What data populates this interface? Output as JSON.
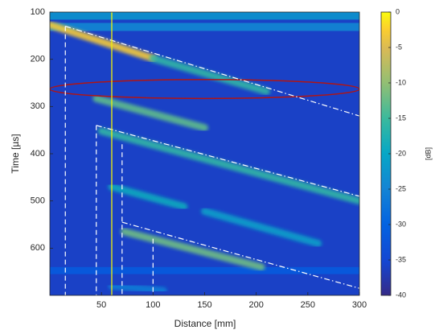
{
  "chart_data": {
    "type": "heatmap",
    "xlabel": "Distance [mm]",
    "ylabel": "Time [µs]",
    "colorbar_label": "[dB]",
    "colormap": "parula",
    "xlim": [
      0,
      300
    ],
    "xticks": [
      50,
      100,
      150,
      200,
      250,
      300
    ],
    "ylim": [
      100,
      700
    ],
    "yticks": [
      100,
      200,
      300,
      400,
      500,
      600
    ],
    "clim": [
      -40,
      0
    ],
    "cticks": [
      0,
      -5,
      -10,
      -15,
      -20,
      -25,
      -30,
      -35,
      -40
    ],
    "background": -36,
    "bands": [
      {
        "y": [
          100,
          116
        ],
        "value": -22
      },
      {
        "y": [
          123,
          140
        ],
        "value": -24
      },
      {
        "y": [
          640,
          655
        ],
        "value": -31
      }
    ],
    "streaks": [
      {
        "x": [
          0,
          100
        ],
        "y": [
          127,
          198
        ],
        "value": -3
      },
      {
        "x": [
          100,
          210
        ],
        "y": [
          198,
          268
        ],
        "value": -16
      },
      {
        "x": [
          0,
          300
        ],
        "y": [
          262,
          262
        ],
        "value": -20
      },
      {
        "x": [
          45,
          150
        ],
        "y": [
          283,
          345
        ],
        "value": -13
      },
      {
        "x": [
          50,
          300
        ],
        "y": [
          352,
          500
        ],
        "value": -16
      },
      {
        "x": [
          60,
          130
        ],
        "y": [
          470,
          512
        ],
        "value": -19
      },
      {
        "x": [
          150,
          260
        ],
        "y": [
          522,
          590
        ],
        "value": -21
      },
      {
        "x": [
          72,
          205
        ],
        "y": [
          565,
          640
        ],
        "value": -12
      },
      {
        "x": [
          60,
          110
        ],
        "y": [
          680,
          690
        ],
        "value": -26
      }
    ],
    "guides": [
      {
        "x": [
          15,
          300
        ],
        "y": [
          130,
          320
        ]
      },
      {
        "x": [
          45,
          300
        ],
        "y": [
          340,
          490
        ]
      },
      {
        "x": [
          70,
          300
        ],
        "y": [
          545,
          685
        ]
      },
      {
        "x": [
          15,
          15
        ],
        "y": [
          130,
          700
        ]
      },
      {
        "x": [
          45,
          45
        ],
        "y": [
          340,
          700
        ]
      },
      {
        "x": [
          70,
          70
        ],
        "y": [
          380,
          700
        ]
      },
      {
        "x": [
          100,
          100
        ],
        "y": [
          580,
          700
        ]
      }
    ],
    "guide_color": "#ffffff",
    "marker": {
      "x": [
        60,
        60
      ],
      "y": [
        100,
        700
      ],
      "color": "#f2f20a"
    },
    "ellipse": {
      "x": [
        0,
        300
      ],
      "y": [
        243,
        283
      ],
      "color": "#b01515"
    }
  }
}
